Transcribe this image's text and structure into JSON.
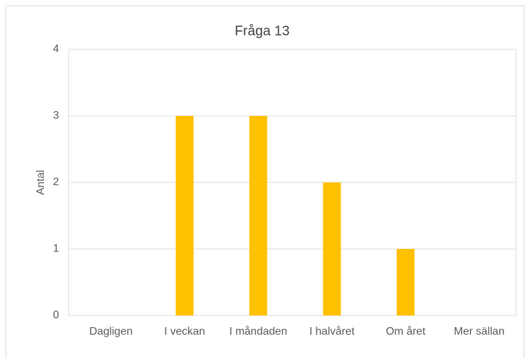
{
  "chart_data": {
    "type": "bar",
    "title": "Fråga 13",
    "y_label": "Antal",
    "categories": [
      "Dagligen",
      "I veckan",
      "I måndaden",
      "I halvåret",
      "Om året",
      "Mer sällan"
    ],
    "values": [
      0,
      3,
      3,
      2,
      1,
      0
    ],
    "color": "#FFC000",
    "ylim": [
      0,
      4
    ],
    "yticks": [
      0,
      1,
      2,
      3,
      4
    ],
    "grid": true
  }
}
